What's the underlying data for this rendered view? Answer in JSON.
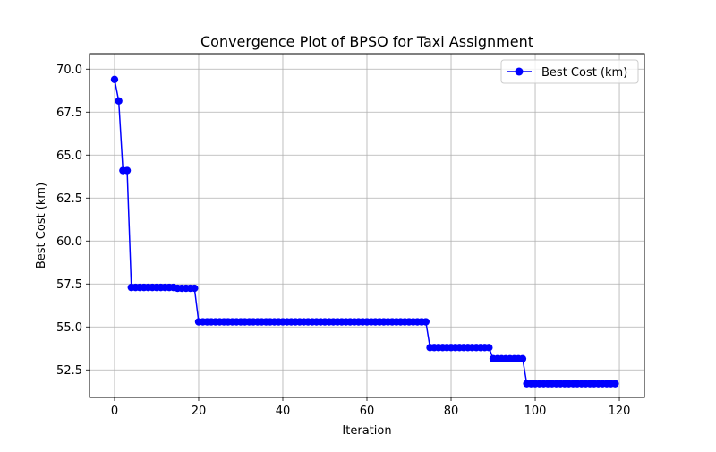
{
  "chart_data": {
    "type": "line",
    "title": "Convergence Plot of BPSO for Taxi Assignment",
    "xlabel": "Iteration",
    "ylabel": "Best Cost (km)",
    "xlim": [
      -5.95,
      125.95
    ],
    "ylim": [
      50.9,
      70.9
    ],
    "x_ticks": [
      0,
      20,
      40,
      60,
      80,
      100,
      120
    ],
    "y_ticks": [
      52.5,
      55.0,
      57.5,
      60.0,
      62.5,
      65.0,
      67.5,
      70.0
    ],
    "x_tick_labels": [
      "0",
      "20",
      "40",
      "60",
      "80",
      "100",
      "120"
    ],
    "y_tick_labels": [
      "52.5",
      "55.0",
      "57.5",
      "60.0",
      "62.5",
      "65.0",
      "67.5",
      "70.0"
    ],
    "grid": true,
    "legend_position": "top-right",
    "series": [
      {
        "name": "Best Cost (km)",
        "color": "#0000ff",
        "marker": "circle",
        "x": [
          0,
          1,
          2,
          3,
          4,
          5,
          6,
          7,
          8,
          9,
          10,
          11,
          12,
          13,
          14,
          15,
          16,
          17,
          18,
          19,
          20,
          21,
          22,
          23,
          24,
          25,
          26,
          27,
          28,
          29,
          30,
          31,
          32,
          33,
          34,
          35,
          36,
          37,
          38,
          39,
          40,
          41,
          42,
          43,
          44,
          45,
          46,
          47,
          48,
          49,
          50,
          51,
          52,
          53,
          54,
          55,
          56,
          57,
          58,
          59,
          60,
          61,
          62,
          63,
          64,
          65,
          66,
          67,
          68,
          69,
          70,
          71,
          72,
          73,
          74,
          75,
          76,
          77,
          78,
          79,
          80,
          81,
          82,
          83,
          84,
          85,
          86,
          87,
          88,
          89,
          90,
          91,
          92,
          93,
          94,
          95,
          96,
          97,
          98,
          99,
          100,
          101,
          102,
          103,
          104,
          105,
          106,
          107,
          108,
          109,
          110,
          111,
          112,
          113,
          114,
          115,
          116,
          117,
          118,
          119
        ],
        "values": [
          69.4,
          68.15,
          64.1,
          64.1,
          57.3,
          57.3,
          57.3,
          57.3,
          57.3,
          57.3,
          57.3,
          57.3,
          57.3,
          57.3,
          57.3,
          57.25,
          57.25,
          57.25,
          57.25,
          57.25,
          55.3,
          55.3,
          55.3,
          55.3,
          55.3,
          55.3,
          55.3,
          55.3,
          55.3,
          55.3,
          55.3,
          55.3,
          55.3,
          55.3,
          55.3,
          55.3,
          55.3,
          55.3,
          55.3,
          55.3,
          55.3,
          55.3,
          55.3,
          55.3,
          55.3,
          55.3,
          55.3,
          55.3,
          55.3,
          55.3,
          55.3,
          55.3,
          55.3,
          55.3,
          55.3,
          55.3,
          55.3,
          55.3,
          55.3,
          55.3,
          55.3,
          55.3,
          55.3,
          55.3,
          55.3,
          55.3,
          55.3,
          55.3,
          55.3,
          55.3,
          55.3,
          55.3,
          55.3,
          55.3,
          55.3,
          53.8,
          53.8,
          53.8,
          53.8,
          53.8,
          53.8,
          53.8,
          53.8,
          53.8,
          53.8,
          53.8,
          53.8,
          53.8,
          53.8,
          53.8,
          53.15,
          53.15,
          53.15,
          53.15,
          53.15,
          53.15,
          53.15,
          53.15,
          51.7,
          51.7,
          51.7,
          51.7,
          51.7,
          51.7,
          51.7,
          51.7,
          51.7,
          51.7,
          51.7,
          51.7,
          51.7,
          51.7,
          51.7,
          51.7,
          51.7,
          51.7,
          51.7,
          51.7,
          51.7,
          51.7
        ]
      }
    ]
  }
}
